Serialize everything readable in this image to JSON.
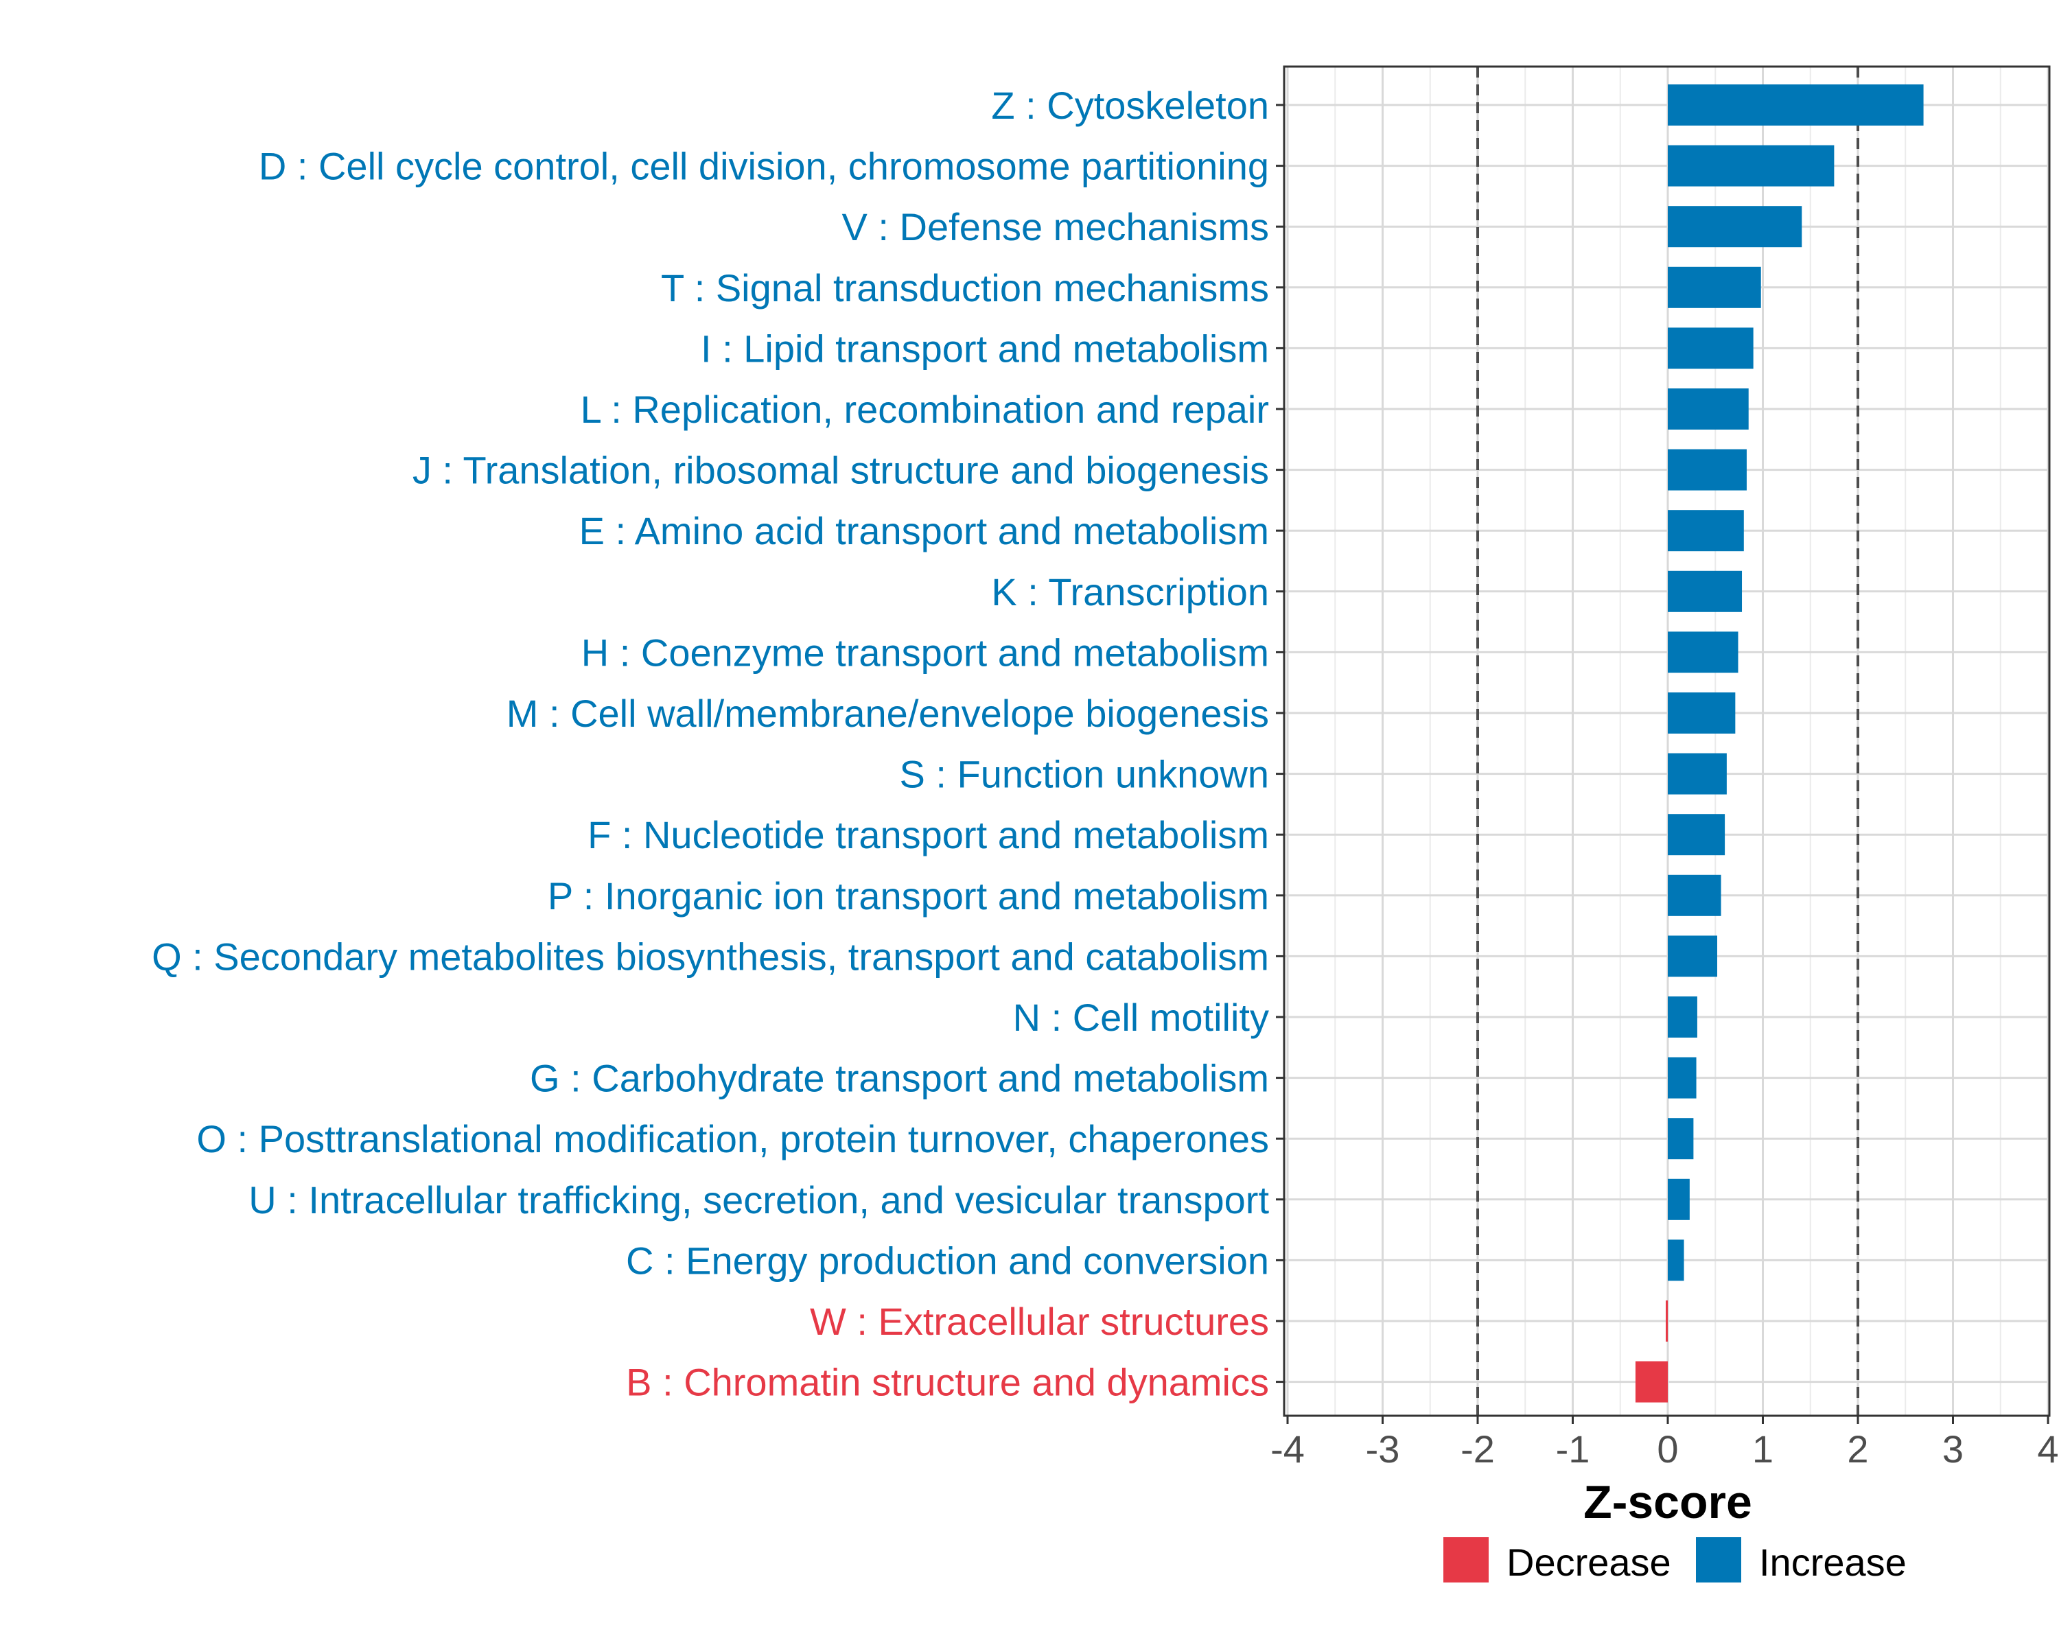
{
  "chart_data": {
    "type": "bar",
    "orientation": "horizontal",
    "xlabel": "Z-score",
    "ylabel": "",
    "xlim": [
      -4,
      4
    ],
    "xticks": [
      "-4",
      "-3",
      "-2",
      "-1",
      "0",
      "1",
      "2",
      "3",
      "4"
    ],
    "reference_lines": [
      -2,
      2
    ],
    "grid": true,
    "categories": [
      "Z : Cytoskeleton",
      "D : Cell cycle control, cell division, chromosome partitioning",
      "V : Defense mechanisms",
      "T : Signal transduction mechanisms",
      "I : Lipid transport and metabolism",
      "L : Replication, recombination and repair",
      "J : Translation, ribosomal structure and biogenesis",
      "E : Amino acid transport and metabolism",
      "K : Transcription",
      "H : Coenzyme transport and metabolism",
      "M : Cell wall/membrane/envelope biogenesis",
      "S : Function unknown",
      "F : Nucleotide transport and metabolism",
      "P : Inorganic ion transport and metabolism",
      "Q : Secondary metabolites biosynthesis, transport and catabolism",
      "N : Cell motility",
      "G : Carbohydrate transport and metabolism",
      "O : Posttranslational modification, protein turnover, chaperones",
      "U : Intracellular trafficking, secretion, and vesicular transport",
      "C : Energy production and conversion",
      "W : Extracellular structures",
      "B : Chromatin structure and dynamics"
    ],
    "values": [
      2.69,
      1.75,
      1.41,
      0.98,
      0.9,
      0.85,
      0.83,
      0.8,
      0.78,
      0.74,
      0.71,
      0.62,
      0.6,
      0.56,
      0.52,
      0.31,
      0.3,
      0.27,
      0.23,
      0.17,
      -0.02,
      -0.34
    ],
    "groups": [
      "Increase",
      "Increase",
      "Increase",
      "Increase",
      "Increase",
      "Increase",
      "Increase",
      "Increase",
      "Increase",
      "Increase",
      "Increase",
      "Increase",
      "Increase",
      "Increase",
      "Increase",
      "Increase",
      "Increase",
      "Increase",
      "Increase",
      "Increase",
      "Decrease",
      "Decrease"
    ],
    "legend": {
      "position": "bottom",
      "entries": [
        {
          "name": "Decrease",
          "color": "#E63946"
        },
        {
          "name": "Increase",
          "color": "#0077B6"
        }
      ]
    }
  }
}
